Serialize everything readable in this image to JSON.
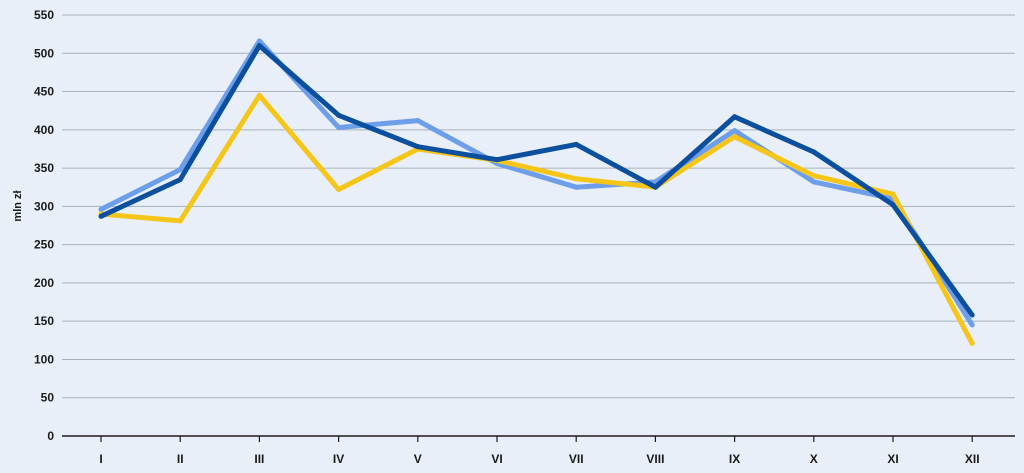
{
  "chart_data": {
    "type": "line",
    "title": "",
    "xlabel": "",
    "ylabel": "mln zł",
    "ylim": [
      0,
      550
    ],
    "yticks": [
      0,
      50,
      100,
      150,
      200,
      250,
      300,
      350,
      400,
      450,
      500,
      550
    ],
    "categories": [
      "I",
      "II",
      "III",
      "IV",
      "V",
      "VI",
      "VII",
      "VIII",
      "IX",
      "X",
      "XI",
      "XII"
    ],
    "grid": true,
    "legend": "none",
    "series": [
      {
        "color": "#6d9eea",
        "values": [
          296,
          348,
          516,
          403,
          412,
          356,
          325,
          332,
          399,
          332,
          310,
          145
        ]
      },
      {
        "color": "#f5c518",
        "values": [
          290,
          281,
          445,
          322,
          375,
          360,
          336,
          325,
          391,
          340,
          316,
          121
        ]
      },
      {
        "color": "#0b4f9e",
        "values": [
          287,
          335,
          510,
          419,
          378,
          361,
          381,
          325,
          417,
          371,
          302,
          158
        ]
      }
    ]
  }
}
